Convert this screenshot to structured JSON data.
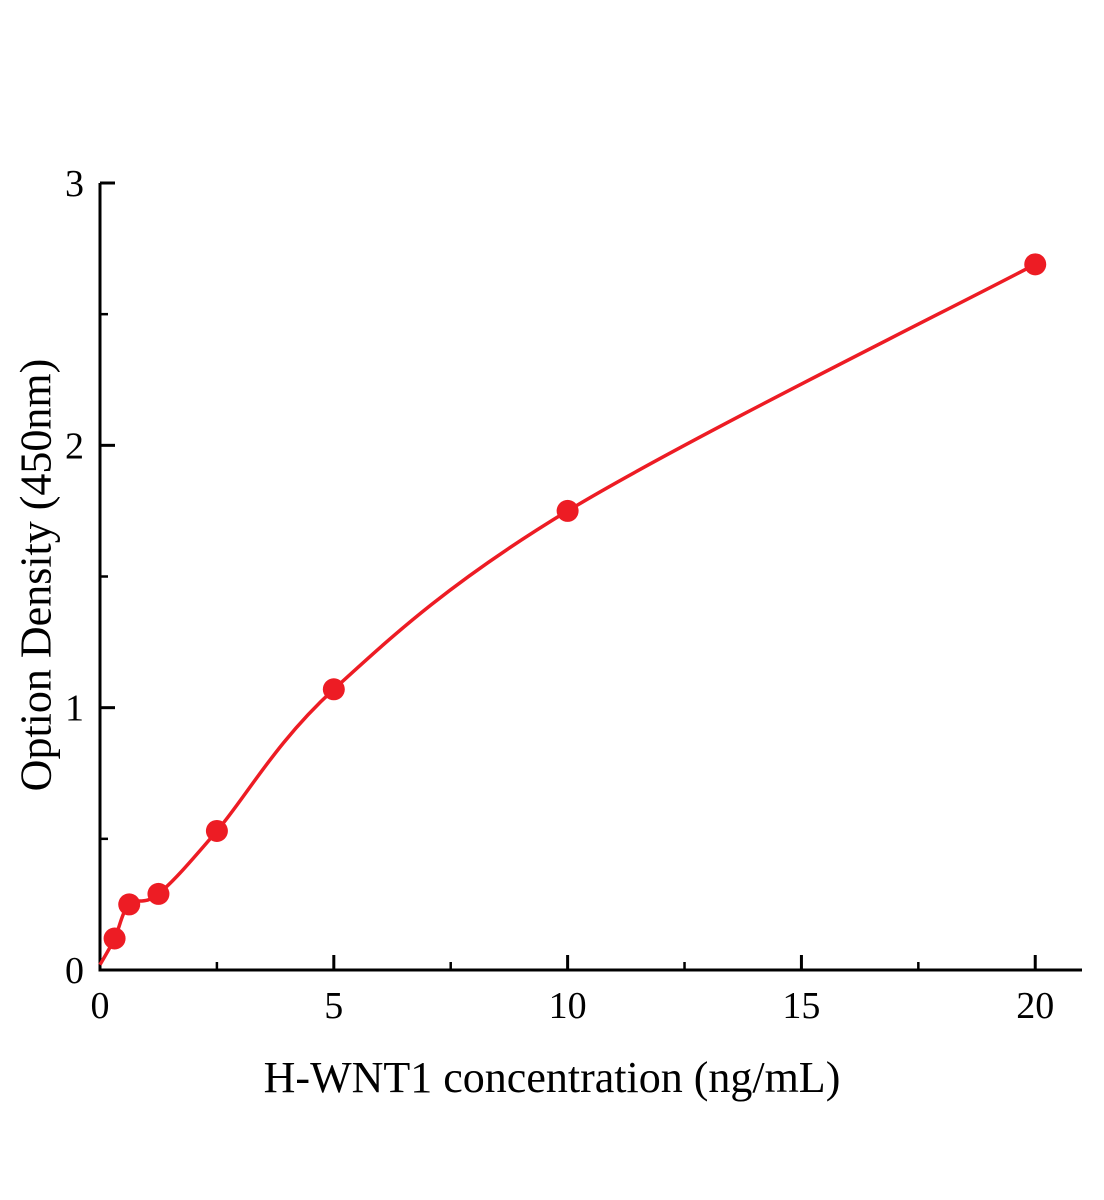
{
  "chart_data": {
    "type": "scatter",
    "title": "",
    "xlabel": "H-WNT1 concentration (ng/mL)",
    "ylabel": "Option Density (450nm)",
    "xlim": [
      0,
      21
    ],
    "ylim": [
      0,
      3
    ],
    "x_major_ticks": [
      0,
      5,
      10,
      15,
      20
    ],
    "x_minor_ticks": [
      2.5,
      7.5,
      12.5,
      17.5
    ],
    "y_major_ticks": [
      0,
      1,
      2,
      3
    ],
    "y_minor_ticks": [
      0.5,
      1.5,
      2.5
    ],
    "curve_start": [
      0,
      0.02
    ],
    "points": [
      [
        0.312,
        0.12
      ],
      [
        0.625,
        0.25
      ],
      [
        1.25,
        0.29
      ],
      [
        2.5,
        0.53
      ],
      [
        5,
        1.07
      ],
      [
        10,
        1.75
      ],
      [
        20,
        2.69
      ]
    ],
    "legend": [],
    "grid": false,
    "curve_color": "#ed1c24",
    "point_color": "#ed1c24",
    "axis_color": "#000000"
  }
}
